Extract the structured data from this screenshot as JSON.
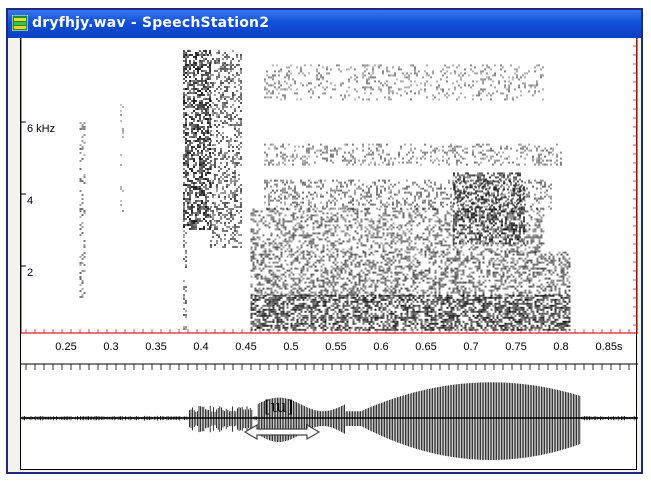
{
  "window": {
    "title": "dryfhjy.wav - SpeechStation2",
    "app_icon": "spectrogram-app-icon"
  },
  "spectrogram": {
    "frequency_labels": [
      "6 kHz",
      "4",
      "2"
    ],
    "frequency_values_khz": [
      6,
      4,
      2
    ],
    "time_labels": [
      "0.25",
      "0.3",
      "0.35",
      "0.4",
      "0.45",
      "0.5",
      "0.55",
      "0.6",
      "0.65",
      "0.7",
      "0.75",
      "0.8",
      "0.85s"
    ],
    "time_values_s": [
      0.25,
      0.3,
      0.35,
      0.4,
      0.45,
      0.5,
      0.55,
      0.6,
      0.65,
      0.7,
      0.75,
      0.8,
      0.85
    ],
    "border_color": "#e02020"
  },
  "annotation": {
    "label": "[ɯ]",
    "arrow_icon": "double-headed-arrow-icon"
  }
}
